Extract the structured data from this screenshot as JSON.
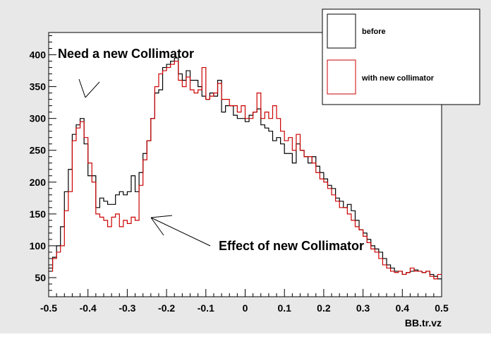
{
  "chart_data": {
    "type": "line",
    "xlabel": "BB.tr.vz",
    "ylabel": "",
    "xlim": [
      -0.5,
      0.5
    ],
    "ylim": [
      20,
      435
    ],
    "x_ticks": [
      "-0.5",
      "-0.4",
      "-0.3",
      "-0.2",
      "-0.1",
      "0",
      "0.1",
      "0.2",
      "0.3",
      "0.4",
      "0.5"
    ],
    "y_ticks": [
      "50",
      "100",
      "150",
      "200",
      "250",
      "300",
      "350",
      "400"
    ],
    "bins": {
      "n": 100,
      "xmin": -0.5,
      "xmax": 0.5
    },
    "series": [
      {
        "name": "before",
        "color": "#000000",
        "values": [
          65,
          82,
          100,
          130,
          185,
          220,
          275,
          290,
          300,
          260,
          210,
          210,
          160,
          175,
          170,
          165,
          165,
          180,
          185,
          180,
          185,
          210,
          185,
          215,
          245,
          265,
          300,
          340,
          345,
          380,
          385,
          390,
          395,
          370,
          360,
          375,
          360,
          360,
          350,
          335,
          330,
          340,
          335,
          360,
          310,
          320,
          320,
          305,
          300,
          300,
          295,
          305,
          310,
          315,
          290,
          285,
          280,
          265,
          270,
          260,
          245,
          245,
          230,
          260,
          250,
          240,
          230,
          240,
          225,
          215,
          205,
          195,
          190,
          175,
          170,
          160,
          165,
          155,
          140,
          125,
          120,
          110,
          100,
          95,
          90,
          80,
          70,
          65,
          60,
          60,
          55,
          58,
          60,
          62,
          60,
          58,
          60,
          55,
          52,
          48
        ]
      },
      {
        "name": "with new collimator",
        "color": "#cc0000",
        "values": [
          60,
          80,
          90,
          100,
          155,
          185,
          265,
          285,
          295,
          270,
          230,
          200,
          150,
          145,
          140,
          130,
          145,
          150,
          130,
          140,
          135,
          145,
          140,
          195,
          235,
          265,
          300,
          350,
          370,
          375,
          380,
          385,
          390,
          360,
          350,
          365,
          345,
          340,
          345,
          380,
          330,
          335,
          340,
          355,
          330,
          330,
          320,
          320,
          310,
          320,
          300,
          300,
          310,
          340,
          300,
          310,
          300,
          320,
          300,
          280,
          265,
          270,
          250,
          275,
          250,
          240,
          240,
          230,
          215,
          205,
          200,
          190,
          180,
          170,
          160,
          160,
          150,
          140,
          130,
          125,
          115,
          105,
          95,
          90,
          80,
          70,
          65,
          60,
          58,
          60,
          55,
          58,
          65,
          60,
          60,
          58,
          60,
          52,
          48,
          55
        ]
      }
    ],
    "legend": {
      "position": "top-right",
      "entries": [
        "before",
        "with new collimator"
      ]
    },
    "annotations": [
      "Need a new  Collimator",
      "Effect of new Collimator"
    ],
    "grid": false
  }
}
